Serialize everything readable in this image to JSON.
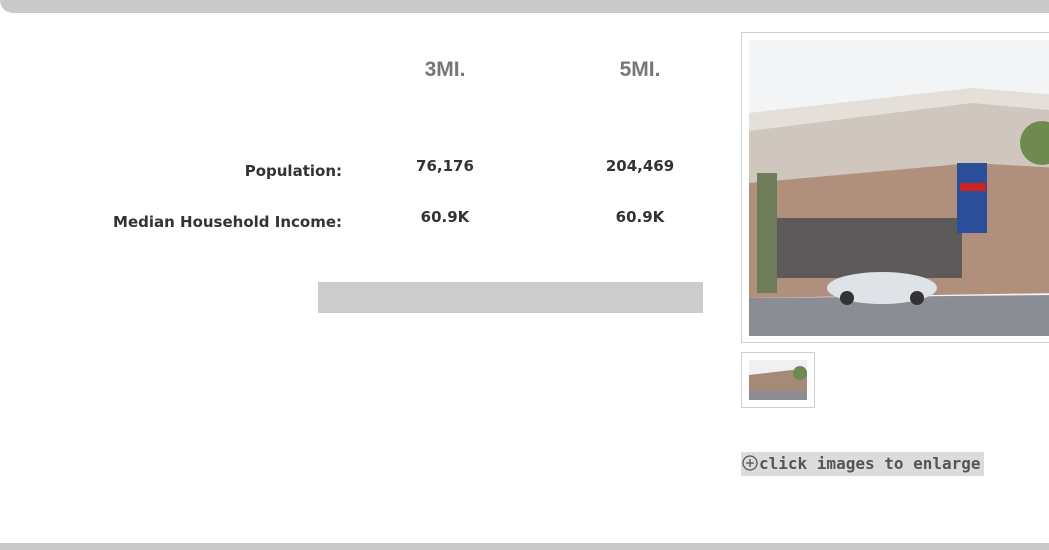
{
  "demographics": {
    "columns": [
      "3MI.",
      "5MI."
    ],
    "rows": [
      [
        "Population:",
        "76,176",
        "204,469"
      ],
      [
        "Median Household Income:",
        "60.9K",
        "60.9K"
      ]
    ]
  },
  "gallery": {
    "caption": "click images to enlarge"
  }
}
